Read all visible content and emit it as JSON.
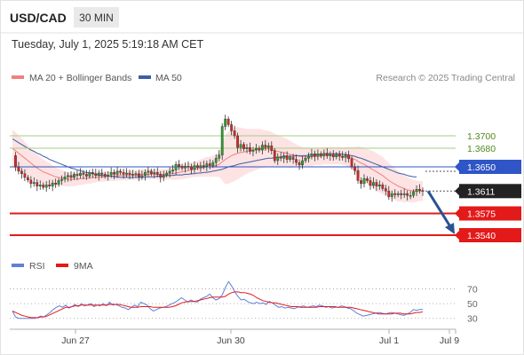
{
  "header": {
    "symbol": "USD/CAD",
    "timeframe": "30 MIN",
    "datetime": "Tuesday, July 1, 2025 5:19:18 AM CET"
  },
  "legend": {
    "ma20_label": "MA 20 + Bollinger Bands",
    "ma50_label": "MA 50",
    "rsi_label": "RSI",
    "rsi_ma_label": "9MA"
  },
  "credit": "Research © 2025 Trading Central",
  "colors": {
    "ma20": "#f08080",
    "bollinger_fill": "#fde3e3",
    "ma50": "#3c5fa8",
    "candle_up": "#27a227",
    "candle_down": "#d92626",
    "resistance": "#a6cf83",
    "pivot": "#2f55c6",
    "support": "#e31a1a",
    "arrow": "#2a5394",
    "rsi": "#5f7fd9",
    "rsi_ma": "#e31a1a"
  },
  "chart_data": [
    {
      "type": "candlestick",
      "title": "USD/CAD",
      "price_range": [
        1.351,
        1.378
      ],
      "x_tick_labels": [
        "Jun 27",
        "Jun 30",
        "Jul 1",
        "Jul 9"
      ],
      "levels": [
        {
          "role": "resistance-2",
          "value": "1.3700"
        },
        {
          "role": "resistance-1",
          "value": "1.3680"
        },
        {
          "role": "pivot",
          "value": "1.3650"
        },
        {
          "role": "last-price",
          "value": "1.3611"
        },
        {
          "role": "support-1",
          "value": "1.3575"
        },
        {
          "role": "support-2",
          "value": "1.3540"
        }
      ],
      "close": [
        1.3668,
        1.365,
        1.3643,
        1.3639,
        1.3633,
        1.3629,
        1.3623,
        1.3625,
        1.3619,
        1.3621,
        1.3617,
        1.3621,
        1.3619,
        1.3624,
        1.3622,
        1.3628,
        1.363,
        1.3634,
        1.3636,
        1.3633,
        1.3638,
        1.3636,
        1.364,
        1.3638,
        1.3635,
        1.3641,
        1.3639,
        1.3636,
        1.364,
        1.3638,
        1.3635,
        1.3637,
        1.3641,
        1.3638,
        1.3643,
        1.3641,
        1.3638,
        1.364,
        1.3638,
        1.3637,
        1.3639,
        1.3634,
        1.3636,
        1.3641,
        1.3643,
        1.3639,
        1.3641,
        1.3638,
        1.3633,
        1.3637,
        1.364,
        1.3643,
        1.3645,
        1.3654,
        1.3651,
        1.3648,
        1.3651,
        1.365,
        1.3646,
        1.3652,
        1.3649,
        1.3652,
        1.3651,
        1.3655,
        1.3652,
        1.3657,
        1.3664,
        1.3669,
        1.3715,
        1.3727,
        1.3718,
        1.3708,
        1.37,
        1.3681,
        1.3686,
        1.3679,
        1.3681,
        1.3675,
        1.3677,
        1.368,
        1.3677,
        1.3685,
        1.3681,
        1.3684,
        1.3676,
        1.366,
        1.3666,
        1.3664,
        1.3668,
        1.3662,
        1.3665,
        1.3662,
        1.3657,
        1.3653,
        1.366,
        1.3664,
        1.3667,
        1.3671,
        1.3667,
        1.3671,
        1.3668,
        1.3672,
        1.3668,
        1.367,
        1.3666,
        1.367,
        1.3667,
        1.3665,
        1.3669,
        1.3663,
        1.365,
        1.3644,
        1.3628,
        1.3623,
        1.3631,
        1.3628,
        1.362,
        1.3625,
        1.3619,
        1.3621,
        1.3615,
        1.3611,
        1.3602,
        1.3607,
        1.3605,
        1.3607,
        1.3605,
        1.3607,
        1.3604,
        1.3604,
        1.361,
        1.3614,
        1.3612,
        1.3611
      ],
      "ma20": [
        1.368,
        1.3676,
        1.3672,
        1.3668,
        1.3664,
        1.366,
        1.3656,
        1.3652,
        1.3648,
        1.3645,
        1.3642,
        1.364,
        1.3638,
        1.3636,
        1.3634,
        1.3633,
        1.3632,
        1.3631,
        1.363,
        1.363,
        1.363,
        1.363,
        1.3631,
        1.3631,
        1.3632,
        1.3632,
        1.3633,
        1.3633,
        1.3634,
        1.3634,
        1.3634,
        1.3635,
        1.3635,
        1.3635,
        1.3636,
        1.3636,
        1.3636,
        1.3636,
        1.3637,
        1.3637,
        1.3637,
        1.3637,
        1.3638,
        1.3638,
        1.3638,
        1.3638,
        1.3638,
        1.3638,
        1.3638,
        1.3638,
        1.3638,
        1.3639,
        1.3639,
        1.364,
        1.3641,
        1.3642,
        1.3643,
        1.3644,
        1.3645,
        1.3646,
        1.3647,
        1.3648,
        1.3649,
        1.365,
        1.365,
        1.3651,
        1.3652,
        1.3654,
        1.3658,
        1.3662,
        1.3665,
        1.3668,
        1.367,
        1.3672,
        1.3673,
        1.3674,
        1.3675,
        1.3676,
        1.3677,
        1.3678,
        1.3679,
        1.3679,
        1.3679,
        1.3679,
        1.3678,
        1.3676,
        1.3675,
        1.3674,
        1.3673,
        1.3672,
        1.367,
        1.3669,
        1.3668,
        1.3667,
        1.3666,
        1.3666,
        1.3666,
        1.3666,
        1.3667,
        1.3667,
        1.3667,
        1.3668,
        1.3668,
        1.3668,
        1.3668,
        1.3668,
        1.3668,
        1.3667,
        1.3667,
        1.3666,
        1.3664,
        1.3662,
        1.3659,
        1.3656,
        1.3654,
        1.3651,
        1.3648,
        1.3645,
        1.3642,
        1.3639,
        1.3636,
        1.3632,
        1.3628,
        1.3625,
        1.3622,
        1.3619,
        1.3617,
        1.3615,
        1.3613,
        1.3612,
        1.3611,
        1.3611,
        1.3611,
        1.3611
      ],
      "ma50": [
        1.3695,
        1.3692,
        1.3689,
        1.3686,
        1.3683,
        1.368,
        1.3677,
        1.3675,
        1.3672,
        1.367,
        1.3667,
        1.3665,
        1.3662,
        1.366,
        1.3658,
        1.3656,
        1.3654,
        1.3652,
        1.365,
        1.3648,
        1.3647,
        1.3645,
        1.3644,
        1.3642,
        1.3641,
        1.364,
        1.3639,
        1.3638,
        1.3637,
        1.3636,
        1.3636,
        1.3635,
        1.3635,
        1.3634,
        1.3634,
        1.3633,
        1.3633,
        1.3633,
        1.3633,
        1.3633,
        1.3633,
        1.3633,
        1.3633,
        1.3634,
        1.3634,
        1.3634,
        1.3634,
        1.3635,
        1.3635,
        1.3635,
        1.3636,
        1.3636,
        1.3636,
        1.3637,
        1.3637,
        1.3637,
        1.3638,
        1.3638,
        1.3639,
        1.3639,
        1.364,
        1.364,
        1.3641,
        1.3641,
        1.3642,
        1.3643,
        1.3644,
        1.3645,
        1.3646,
        1.3648,
        1.365,
        1.3651,
        1.3652,
        1.3654,
        1.3655,
        1.3656,
        1.3657,
        1.3658,
        1.3659,
        1.366,
        1.3661,
        1.3662,
        1.3663,
        1.3664,
        1.3664,
        1.3665,
        1.3665,
        1.3666,
        1.3666,
        1.3667,
        1.3667,
        1.3667,
        1.3668,
        1.3668,
        1.3668,
        1.3668,
        1.3669,
        1.3669,
        1.3669,
        1.367,
        1.367,
        1.367,
        1.3671,
        1.3671,
        1.3671,
        1.3671,
        1.3671,
        1.367,
        1.367,
        1.3669,
        1.3668,
        1.3667,
        1.3665,
        1.3664,
        1.3662,
        1.366,
        1.3658,
        1.3656,
        1.3654,
        1.3652,
        1.365,
        1.3648,
        1.3646,
        1.3644,
        1.3642,
        1.364,
        1.3639,
        1.3638,
        1.3636,
        1.3635,
        1.3634,
        1.3634
      ],
      "bb_width": [
        0.003,
        0.003,
        0.0029,
        0.0028,
        0.0026,
        0.0025,
        0.0024,
        0.0023,
        0.0022,
        0.0021,
        0.002,
        0.0019,
        0.0018,
        0.0016,
        0.0015,
        0.0014,
        0.0013,
        0.0012,
        0.0012,
        0.0011,
        0.0011,
        0.001,
        0.001,
        0.001,
        0.0009,
        0.0009,
        0.0009,
        0.0008,
        0.0008,
        0.0008,
        0.0008,
        0.0008,
        0.0008,
        0.0008,
        0.0008,
        0.0008,
        0.0008,
        0.0008,
        0.0008,
        0.0008,
        0.0008,
        0.0008,
        0.0008,
        0.0008,
        0.0008,
        0.0008,
        0.0008,
        0.0008,
        0.0008,
        0.0008,
        0.0009,
        0.0009,
        0.001,
        0.0011,
        0.0011,
        0.0012,
        0.0012,
        0.0012,
        0.0012,
        0.0012,
        0.0013,
        0.0014,
        0.0015,
        0.0016,
        0.0016,
        0.0017,
        0.0018,
        0.002,
        0.003,
        0.004,
        0.0042,
        0.0043,
        0.0043,
        0.0042,
        0.004,
        0.0038,
        0.0036,
        0.0035,
        0.0034,
        0.0033,
        0.0032,
        0.0031,
        0.003,
        0.0029,
        0.0028,
        0.0027,
        0.0026,
        0.0025,
        0.0024,
        0.0023,
        0.0022,
        0.002,
        0.0018,
        0.0017,
        0.0016,
        0.0015,
        0.0015,
        0.0015,
        0.0014,
        0.0014,
        0.0014,
        0.0014,
        0.0014,
        0.0014,
        0.0014,
        0.0014,
        0.0014,
        0.0014,
        0.0015,
        0.0016,
        0.0018,
        0.002,
        0.0024,
        0.0026,
        0.0027,
        0.0028,
        0.0029,
        0.003,
        0.003,
        0.003,
        0.003,
        0.0029,
        0.0028,
        0.0027,
        0.0026,
        0.0025,
        0.0023,
        0.0022,
        0.002,
        0.0019,
        0.0018,
        0.0017,
        0.0016,
        0.0016
      ],
      "projection": {
        "from": 1.3611,
        "to": 1.354
      }
    },
    {
      "type": "line",
      "title": "RSI",
      "ylim": [
        20,
        90
      ],
      "y_tick_labels": [
        "70",
        "50",
        "30"
      ],
      "series": [
        {
          "name": "RSI",
          "values": [
            40,
            32,
            30,
            30,
            30,
            30,
            30,
            30,
            31,
            33,
            32,
            35,
            38,
            42,
            45,
            47,
            45,
            48,
            44,
            46,
            49,
            46,
            50,
            47,
            48,
            50,
            46,
            48,
            47,
            50,
            47,
            52,
            48,
            49,
            47,
            45,
            44,
            42,
            45,
            48,
            46,
            52,
            50,
            48,
            43,
            40,
            42,
            44,
            45,
            46,
            48,
            50,
            52,
            55,
            58,
            55,
            52,
            55,
            53,
            52,
            56,
            58,
            60,
            63,
            58,
            55,
            57,
            62,
            72,
            80,
            74,
            66,
            60,
            55,
            56,
            53,
            51,
            50,
            52,
            50,
            51,
            49,
            53,
            51,
            48,
            45,
            46,
            44,
            45,
            44,
            43,
            45,
            46,
            47,
            45,
            46,
            47,
            46,
            48,
            47,
            45,
            46,
            44,
            45,
            45,
            47,
            46,
            44,
            43,
            40,
            37,
            35,
            33,
            34,
            35,
            36,
            37,
            38,
            37,
            36,
            37,
            38,
            37,
            36,
            35,
            34,
            36,
            38,
            42,
            41,
            42,
            42
          ]
        },
        {
          "name": "9MA",
          "values": [
            40,
            38,
            36,
            34,
            33,
            32,
            31,
            31,
            31,
            32,
            32,
            33,
            35,
            37,
            39,
            41,
            43,
            45,
            45,
            46,
            47,
            47,
            48,
            48,
            48,
            48,
            48,
            48,
            48,
            48,
            48,
            49,
            49,
            49,
            49,
            48,
            47,
            46,
            45,
            45,
            45,
            46,
            46,
            46,
            46,
            45,
            45,
            45,
            45,
            45,
            45,
            46,
            47,
            49,
            51,
            52,
            53,
            53,
            53,
            54,
            55,
            56,
            57,
            58,
            59,
            59,
            59,
            59,
            60,
            63,
            65,
            66,
            66,
            65,
            65,
            64,
            63,
            61,
            58,
            56,
            54,
            53,
            52,
            51,
            51,
            50,
            49,
            48,
            47,
            46,
            46,
            46,
            45,
            45,
            45,
            45,
            45,
            45,
            46,
            46,
            46,
            46,
            46,
            46,
            45,
            45,
            45,
            45,
            45,
            44,
            43,
            42,
            41,
            40,
            39,
            38,
            37,
            36,
            36,
            36,
            36,
            36,
            37,
            37,
            37,
            36,
            36,
            36,
            37,
            38,
            38,
            39
          ]
        }
      ]
    }
  ]
}
